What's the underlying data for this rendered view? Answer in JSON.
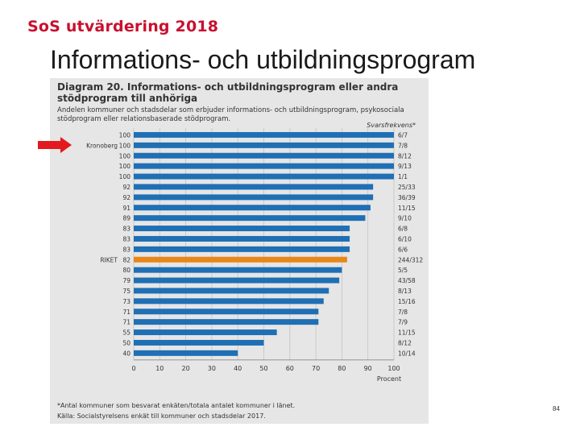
{
  "header": {
    "brand": "SoS utvärdering 2018",
    "title": "Informations- och utbildningsprogram"
  },
  "figure": {
    "title": "Diagram 20. Informations- och utbildningsprogram eller andra stödprogram till anhöriga",
    "subtitle": "Andelen kommuner och stadsdelar som erbjuder informations- och utbildningsprogram, psykosociala stödprogram eller relationsbaserade stödprogram.",
    "footnote": "*Antal kommuner som besvarat enkäten/totala antalet kommuner i länet.",
    "source": "Källa: Socialstyrelsens enkät till kommuner och stadsdelar 2017."
  },
  "chart_data": {
    "type": "bar",
    "orientation": "horizontal",
    "xlabel": "Procent",
    "right_column_header": "Svarsfrekvens*",
    "xlim": [
      0,
      100
    ],
    "xticks": [
      0,
      10,
      20,
      30,
      40,
      50,
      60,
      70,
      80,
      90,
      100
    ],
    "grid": true,
    "bar_color": "#1f6fb5",
    "highlight_color": "#e8861a",
    "highlight_label": "RIKET",
    "arrow_color": "#e3191f",
    "arrow_target": "Kronoberg",
    "rows": [
      {
        "label": "",
        "value": 100,
        "response": "6/7"
      },
      {
        "label": "Kronoberg",
        "value": 100,
        "response": "7/8"
      },
      {
        "label": "",
        "value": 100,
        "response": "8/12"
      },
      {
        "label": "",
        "value": 100,
        "response": "9/13"
      },
      {
        "label": "",
        "value": 100,
        "response": "1/1"
      },
      {
        "label": "",
        "value": 92,
        "response": "25/33"
      },
      {
        "label": "",
        "value": 92,
        "response": "36/39"
      },
      {
        "label": "",
        "value": 91,
        "response": "11/15"
      },
      {
        "label": "",
        "value": 89,
        "response": "9/10"
      },
      {
        "label": "",
        "value": 83,
        "response": "6/8"
      },
      {
        "label": "",
        "value": 83,
        "response": "6/10"
      },
      {
        "label": "",
        "value": 83,
        "response": "6/6"
      },
      {
        "label": "RIKET",
        "value": 82,
        "response": "244/312"
      },
      {
        "label": "",
        "value": 80,
        "response": "5/5"
      },
      {
        "label": "",
        "value": 79,
        "response": "43/58"
      },
      {
        "label": "",
        "value": 75,
        "response": "8/13"
      },
      {
        "label": "",
        "value": 73,
        "response": "15/16"
      },
      {
        "label": "",
        "value": 71,
        "response": "7/8"
      },
      {
        "label": "",
        "value": 71,
        "response": "7/9"
      },
      {
        "label": "",
        "value": 55,
        "response": "11/15"
      },
      {
        "label": "",
        "value": 50,
        "response": "8/12"
      },
      {
        "label": "",
        "value": 40,
        "response": "10/14"
      }
    ]
  },
  "page_number": "84"
}
